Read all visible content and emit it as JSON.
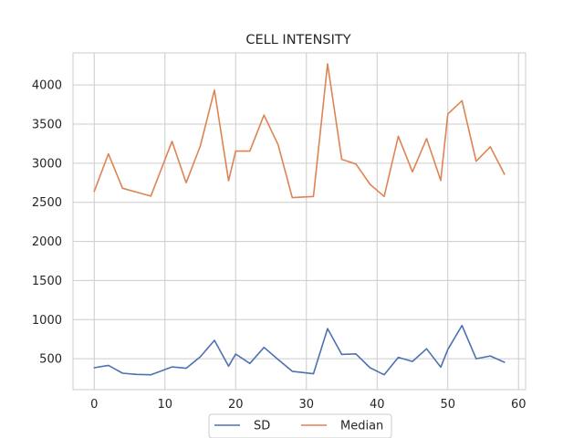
{
  "chart_data": {
    "type": "line",
    "title": "CELL INTENSITY",
    "xlabel": "",
    "ylabel": "",
    "xlim": [
      -3,
      61
    ],
    "ylim": [
      105,
      4410
    ],
    "xticks": [
      0,
      10,
      20,
      30,
      40,
      50,
      60
    ],
    "yticks": [
      500,
      1000,
      1500,
      2000,
      2500,
      3000,
      3500,
      4000
    ],
    "grid": true,
    "legend_position": "bottom-center",
    "series": [
      {
        "name": "SD",
        "color": "#4c72b0",
        "x": [
          0,
          2,
          4,
          6,
          8,
          11,
          13,
          15,
          17,
          19,
          20,
          22,
          24,
          26,
          28,
          31,
          33,
          35,
          37,
          39,
          41,
          43,
          45,
          47,
          49,
          50,
          52,
          54,
          56,
          58
        ],
        "y": [
          385,
          415,
          315,
          300,
          295,
          395,
          378,
          525,
          735,
          405,
          560,
          440,
          645,
          490,
          340,
          308,
          885,
          555,
          562,
          385,
          295,
          518,
          465,
          628,
          392,
          620,
          925,
          500,
          535,
          455
        ]
      },
      {
        "name": "Median",
        "color": "#dd8452",
        "x": [
          0,
          2,
          4,
          6,
          8,
          11,
          13,
          15,
          17,
          19,
          20,
          22,
          24,
          26,
          28,
          31,
          33,
          35,
          37,
          39,
          41,
          43,
          45,
          47,
          49,
          50,
          52,
          54,
          56,
          58
        ],
        "y": [
          2640,
          3120,
          2680,
          2630,
          2580,
          3280,
          2750,
          3220,
          3935,
          2775,
          3155,
          3155,
          3615,
          3235,
          2560,
          2575,
          4270,
          3050,
          2990,
          2730,
          2575,
          3345,
          2890,
          3315,
          2780,
          3630,
          3800,
          3025,
          3210,
          2860
        ]
      }
    ]
  }
}
